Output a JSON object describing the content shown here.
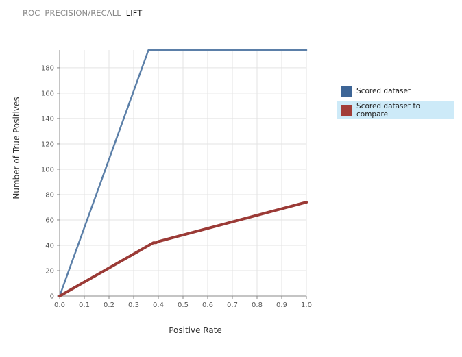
{
  "tabs": [
    {
      "label": "ROC",
      "active": false
    },
    {
      "label": "PRECISION/RECALL",
      "active": false
    },
    {
      "label": "LIFT",
      "active": true
    }
  ],
  "colors": {
    "series_scored": "#5b7fa8",
    "series_compare": "#9b3a36",
    "swatch_scored": "#3d6596",
    "swatch_compare": "#a23d38",
    "grid": "#e3e3e3",
    "axis": "#888888",
    "legend_selected_bg": "#cdeaf8"
  },
  "legend": {
    "items": [
      {
        "label": "Scored dataset",
        "selected": false
      },
      {
        "label": "Scored dataset to compare",
        "selected": true
      }
    ]
  },
  "chart_data": {
    "type": "line",
    "title": "",
    "xlabel": "Positive Rate",
    "ylabel": "Number of True Positives",
    "xlim": [
      0,
      1.0
    ],
    "ylim": [
      0,
      194
    ],
    "xticks": [
      "0.0",
      "0.1",
      "0.2",
      "0.3",
      "0.4",
      "0.5",
      "0.6",
      "0.7",
      "0.8",
      "0.9",
      "1.0"
    ],
    "yticks": [
      "0",
      "20",
      "40",
      "60",
      "80",
      "100",
      "120",
      "140",
      "160",
      "180"
    ],
    "grid": true,
    "legend_position": "right",
    "series": [
      {
        "name": "Scored dataset",
        "points": [
          [
            0,
            0
          ],
          [
            0.36,
            194
          ],
          [
            1.0,
            194
          ]
        ]
      },
      {
        "name": "Scored dataset to compare",
        "points": [
          [
            0,
            0
          ],
          [
            0.38,
            42
          ],
          [
            0.39,
            42
          ],
          [
            0.4,
            43
          ],
          [
            1.0,
            74
          ]
        ]
      }
    ]
  }
}
